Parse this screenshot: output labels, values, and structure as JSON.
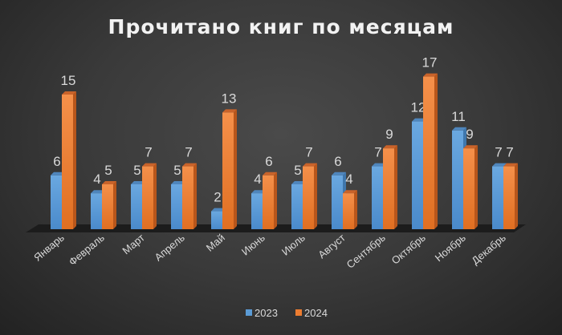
{
  "chart_data": {
    "type": "bar",
    "title": "Прочитано книг по месяцам",
    "categories": [
      "Январь",
      "Февраль",
      "Март",
      "Апрель",
      "Май",
      "Июнь",
      "Июль",
      "Август",
      "Сентябрь",
      "Октябрь",
      "Ноябрь",
      "Декабрь"
    ],
    "series": [
      {
        "name": "2023",
        "color": "#5b9bd5",
        "values": [
          6,
          4,
          5,
          5,
          2,
          4,
          5,
          6,
          7,
          12,
          11,
          7
        ]
      },
      {
        "name": "2024",
        "color": "#ed7d31",
        "values": [
          15,
          5,
          7,
          7,
          13,
          6,
          7,
          4,
          9,
          17,
          9,
          7
        ]
      }
    ],
    "data_labels": true,
    "three_d": true,
    "grid": false,
    "legend": "bottom"
  }
}
